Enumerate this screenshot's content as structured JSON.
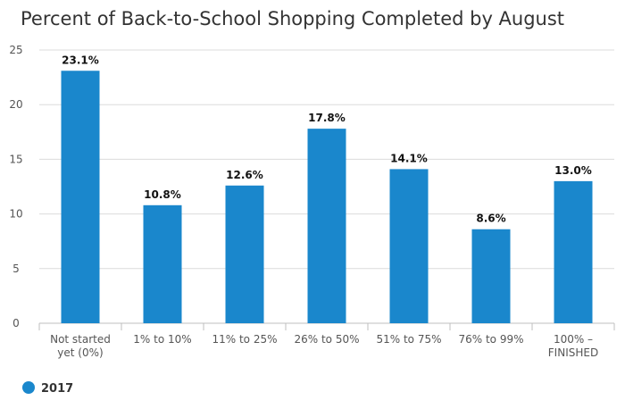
{
  "chart_data": {
    "type": "bar",
    "title": "Percent of Back-to-School Shopping Completed by August",
    "categories": [
      [
        "Not started",
        "yet (0%)"
      ],
      [
        "1% to 10%"
      ],
      [
        "11% to 25%"
      ],
      [
        "26% to 50%"
      ],
      [
        "51% to 75%"
      ],
      [
        "76% to 99%"
      ],
      [
        "100% –",
        "FINISHED"
      ]
    ],
    "series": [
      {
        "name": "2017",
        "color": "#1a87cc",
        "values": [
          23.1,
          10.8,
          12.6,
          17.8,
          14.1,
          8.6,
          13.0
        ],
        "labels": [
          "23.1%",
          "10.8%",
          "12.6%",
          "17.8%",
          "14.1%",
          "8.6%",
          "13.0%"
        ]
      }
    ],
    "ylim": [
      0,
      25
    ],
    "yticks": [
      0,
      5,
      10,
      15,
      20,
      25
    ],
    "grid": true,
    "legend": "bottom-left"
  }
}
